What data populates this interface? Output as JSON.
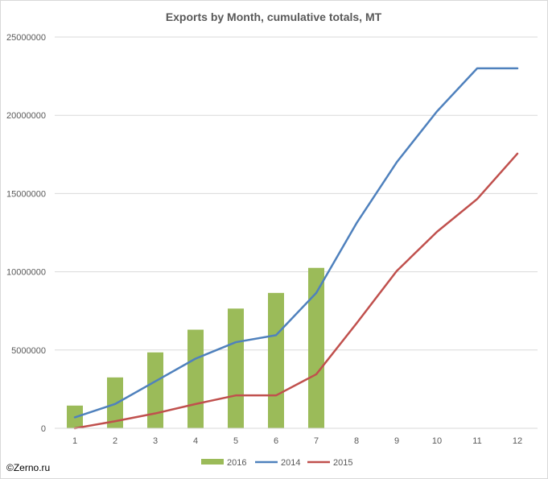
{
  "chart_data": {
    "type": "bar",
    "title": "Exports by Month, cumulative totals, MT",
    "xlabel": "",
    "ylabel": "",
    "categories": [
      "1",
      "2",
      "3",
      "4",
      "5",
      "6",
      "7",
      "8",
      "9",
      "10",
      "11",
      "12"
    ],
    "ylim": [
      0,
      25000000
    ],
    "yticks": [
      0,
      5000000,
      10000000,
      15000000,
      20000000,
      25000000
    ],
    "ytick_labels": [
      "0",
      "5000000",
      "10000000",
      "15000000",
      "20000000",
      "25000000"
    ],
    "grid": true,
    "legend_position": "bottom",
    "series": [
      {
        "name": "2016",
        "type": "bar",
        "color": "#9bbb59",
        "values": [
          1450000,
          3250000,
          4850000,
          6300000,
          7650000,
          8650000,
          10250000,
          null,
          null,
          null,
          null,
          null
        ]
      },
      {
        "name": "2014",
        "type": "line",
        "color": "#4f81bd",
        "values": [
          700000,
          1550000,
          3000000,
          4450000,
          5500000,
          5950000,
          8650000,
          13100000,
          17000000,
          20250000,
          23000000,
          23000000
        ]
      },
      {
        "name": "2015",
        "type": "line",
        "color": "#c0504d",
        "values": [
          0,
          450000,
          950000,
          1550000,
          2100000,
          2100000,
          3450000,
          6700000,
          10050000,
          12550000,
          14650000,
          17550000
        ]
      }
    ]
  },
  "credit": "©Zerno.ru"
}
